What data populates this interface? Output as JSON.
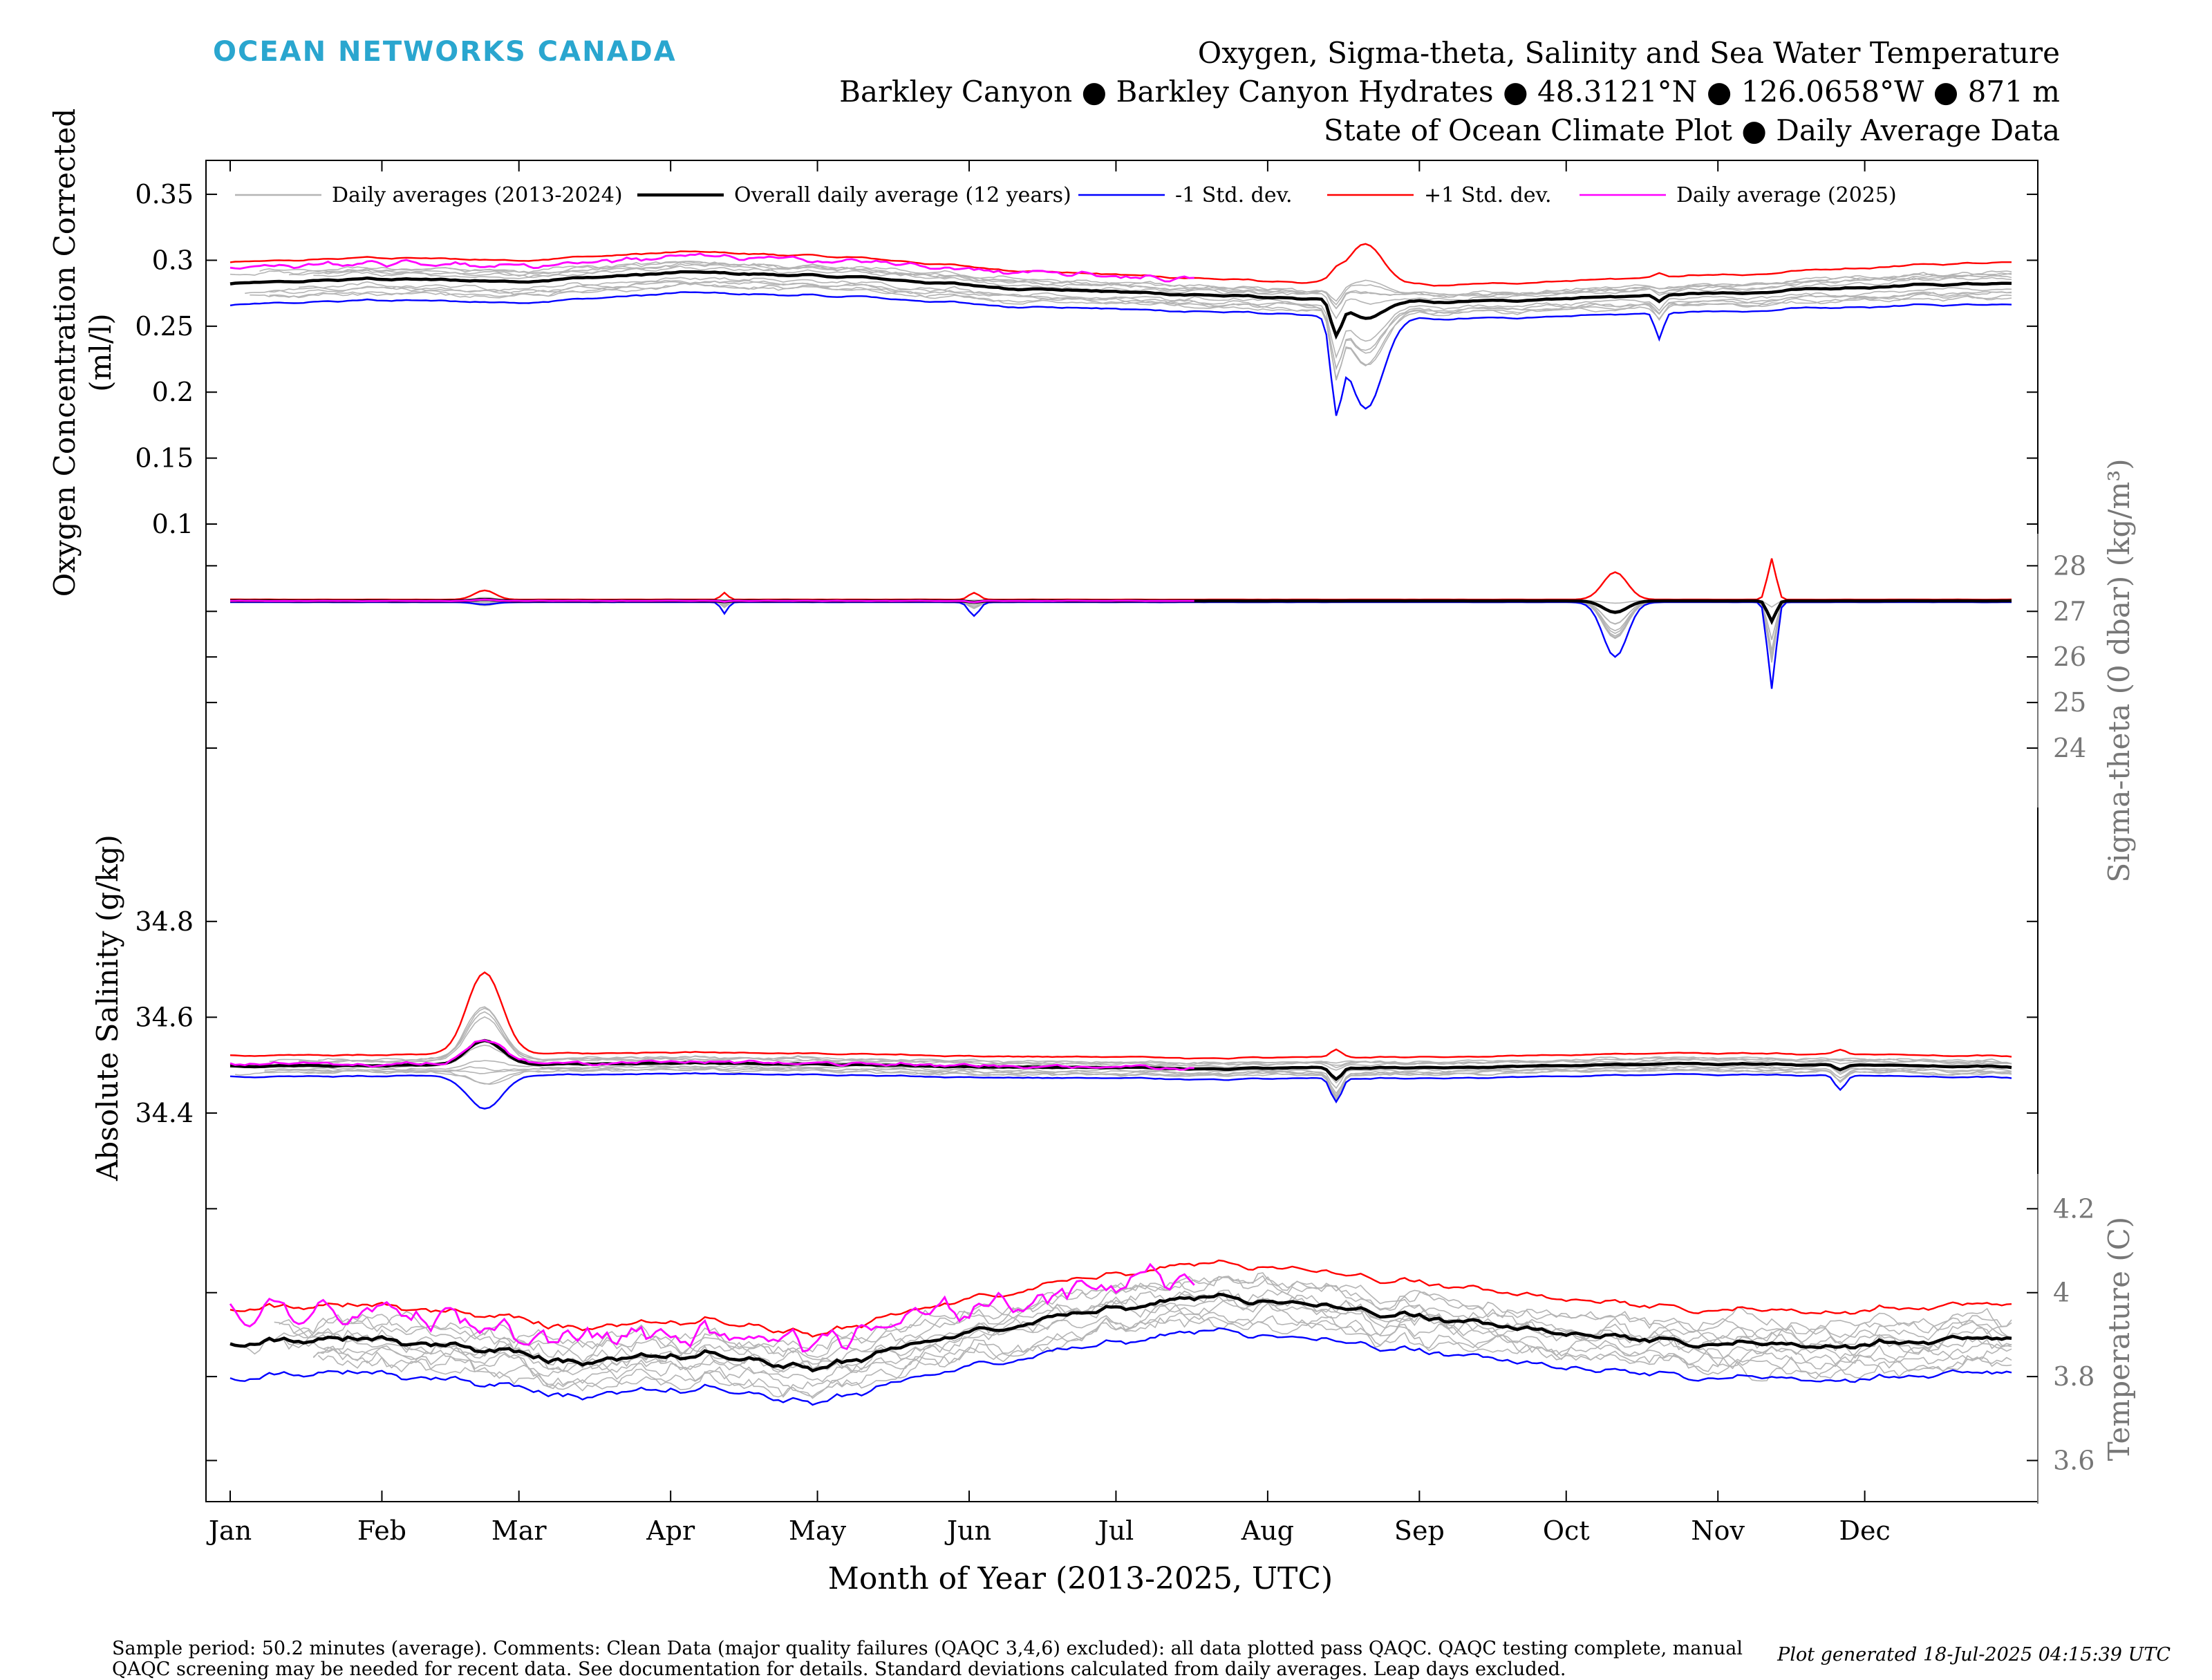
{
  "brand": "OCEAN NETWORKS CANADA",
  "title": {
    "line1": "Oxygen, Sigma-theta, Salinity and Sea Water Temperature",
    "line2": "Barkley Canyon ● Barkley Canyon Hydrates ● 48.3121°N ● 126.0658°W ● 871 m",
    "line3": "State of Ocean Climate Plot ● Daily Average Data"
  },
  "footnote": "Sample period: 50.2 minutes (average). Comments: Clean Data (major quality failures (QAQC 3,4,6) excluded): all data plotted pass QAQC. QAQC testing complete, manual QAQC screening may be needed for recent data. See documentation for details. Standard deviations calculated from daily averages. Leap days excluded.",
  "generated": "Plot generated 18-Jul-2025 04:15:39 UTC",
  "colors": {
    "brand": "#2aa6cf",
    "history": "#b4b4b4",
    "mean": "#000000",
    "minus_sd": "#0000ff",
    "plus_sd": "#ff0000",
    "current": "#ff00ff"
  },
  "chart_data": {
    "type": "line",
    "x": {
      "label": "Month of Year (2013-2025, UTC)",
      "unit": "day of year",
      "range": [
        1,
        365
      ],
      "ticks": [
        "Jan",
        "Feb",
        "Mar",
        "Apr",
        "May",
        "Jun",
        "Jul",
        "Aug",
        "Sep",
        "Oct",
        "Nov",
        "Dec"
      ]
    },
    "legend": {
      "position": "top",
      "entries": [
        {
          "label": "Daily averages (2013-2024)",
          "color": "#b4b4b4"
        },
        {
          "label": "Overall daily average (12 years)",
          "color": "#000000"
        },
        {
          "label": "-1 Std. dev.",
          "color": "#0000ff"
        },
        {
          "label": "+1 Std. dev.",
          "color": "#ff0000"
        },
        {
          "label": "Daily average (2025)",
          "color": "#ff00ff"
        }
      ]
    },
    "panels": [
      {
        "id": "oxygen",
        "ylabel": "Oxygen Concentration Corrected\n(ml/l)",
        "axis_side": "left",
        "ticks": [
          0.1,
          0.15,
          0.2,
          0.25,
          0.3,
          0.35
        ],
        "ylim": [
          0.1,
          0.36
        ],
        "mean_base": [
          [
            1,
            0.282
          ],
          [
            30,
            0.286
          ],
          [
            60,
            0.284
          ],
          [
            95,
            0.291
          ],
          [
            130,
            0.287
          ],
          [
            160,
            0.279
          ],
          [
            190,
            0.275
          ],
          [
            220,
            0.271
          ],
          [
            250,
            0.268
          ],
          [
            280,
            0.272
          ],
          [
            315,
            0.276
          ],
          [
            345,
            0.281
          ],
          [
            365,
            0.283
          ]
        ],
        "sd_base": [
          [
            1,
            0.016
          ],
          [
            60,
            0.016
          ],
          [
            120,
            0.015
          ],
          [
            180,
            0.013
          ],
          [
            220,
            0.012
          ],
          [
            260,
            0.013
          ],
          [
            320,
            0.014
          ],
          [
            365,
            0.016
          ]
        ],
        "noise": 0.0015,
        "spikes": [
          {
            "day": 227,
            "mean": -0.025,
            "minus": -0.06,
            "plus": 0.005,
            "width": 1.5
          },
          {
            "day": 233,
            "mean": -0.014,
            "minus": -0.07,
            "plus": 0.03,
            "width": 5
          },
          {
            "day": 293,
            "mean": -0.005,
            "minus": -0.02,
            "plus": 0.003,
            "width": 1.2
          }
        ],
        "current_end_day": 198,
        "current_offset": 0.012
      },
      {
        "id": "sigma",
        "ylabel": "Sigma-theta (0 dbar) (kg/m³)",
        "axis_side": "right",
        "ticks": [
          24,
          25,
          26,
          27,
          28
        ],
        "ylim": [
          23,
          28.4
        ],
        "mean_base": [
          [
            1,
            27.23
          ],
          [
            365,
            27.23
          ]
        ],
        "sd_base": [
          [
            1,
            0.03
          ],
          [
            365,
            0.03
          ]
        ],
        "noise": 0.003,
        "spikes": [
          {
            "day": 53,
            "mean": 0.03,
            "minus": -0.05,
            "plus": 0.2,
            "width": 3
          },
          {
            "day": 102,
            "mean": -0.02,
            "minus": -0.25,
            "plus": 0.15,
            "width": 1
          },
          {
            "day": 153,
            "mean": -0.03,
            "minus": -0.3,
            "plus": 0.15,
            "width": 1.5
          },
          {
            "day": 284,
            "mean": -0.25,
            "minus": -1.2,
            "plus": 0.6,
            "width": 3.5
          },
          {
            "day": 316,
            "mean": -0.45,
            "minus": -1.9,
            "plus": 0.9,
            "width": 1.2
          }
        ],
        "current_end_day": 198,
        "current_offset": 0.0
      },
      {
        "id": "salinity",
        "ylabel": "Absolute Salinity (g/kg)",
        "axis_side": "left",
        "ticks": [
          34.4,
          34.6,
          34.8
        ],
        "ylim": [
          34.27,
          34.97
        ],
        "mean_base": [
          [
            1,
            34.497
          ],
          [
            60,
            34.502
          ],
          [
            100,
            34.505
          ],
          [
            150,
            34.497
          ],
          [
            200,
            34.493
          ],
          [
            250,
            34.495
          ],
          [
            300,
            34.503
          ],
          [
            365,
            34.497
          ]
        ],
        "sd_base": [
          [
            1,
            0.022
          ],
          [
            365,
            0.022
          ]
        ],
        "noise": 0.003,
        "spikes": [
          {
            "day": 53,
            "mean": 0.05,
            "minus": -0.07,
            "plus": 0.17,
            "width": 5
          },
          {
            "day": 227,
            "mean": -0.025,
            "minus": -0.05,
            "plus": 0.015,
            "width": 1.5
          },
          {
            "day": 330,
            "mean": -0.01,
            "minus": -0.03,
            "plus": 0.01,
            "width": 1.5
          }
        ],
        "current_end_day": 198,
        "current_offset": 0.002
      },
      {
        "id": "temperature",
        "ylabel": "Temperature (C)",
        "axis_side": "right",
        "ticks": [
          3.6,
          3.8,
          4.0,
          4.2
        ],
        "ylim": [
          3.53,
          4.25
        ],
        "mean_base": [
          [
            1,
            3.88
          ],
          [
            25,
            3.9
          ],
          [
            50,
            3.87
          ],
          [
            75,
            3.83
          ],
          [
            100,
            3.85
          ],
          [
            120,
            3.82
          ],
          [
            150,
            3.9
          ],
          [
            180,
            3.96
          ],
          [
            200,
            3.99
          ],
          [
            215,
            3.98
          ],
          [
            240,
            3.95
          ],
          [
            270,
            3.91
          ],
          [
            300,
            3.88
          ],
          [
            330,
            3.87
          ],
          [
            365,
            3.9
          ]
        ],
        "sd_base": [
          [
            1,
            0.08
          ],
          [
            365,
            0.08
          ]
        ],
        "noise": 0.02,
        "spikes": [],
        "current_end_day": 198,
        "current_offset": 0.06
      }
    ]
  }
}
